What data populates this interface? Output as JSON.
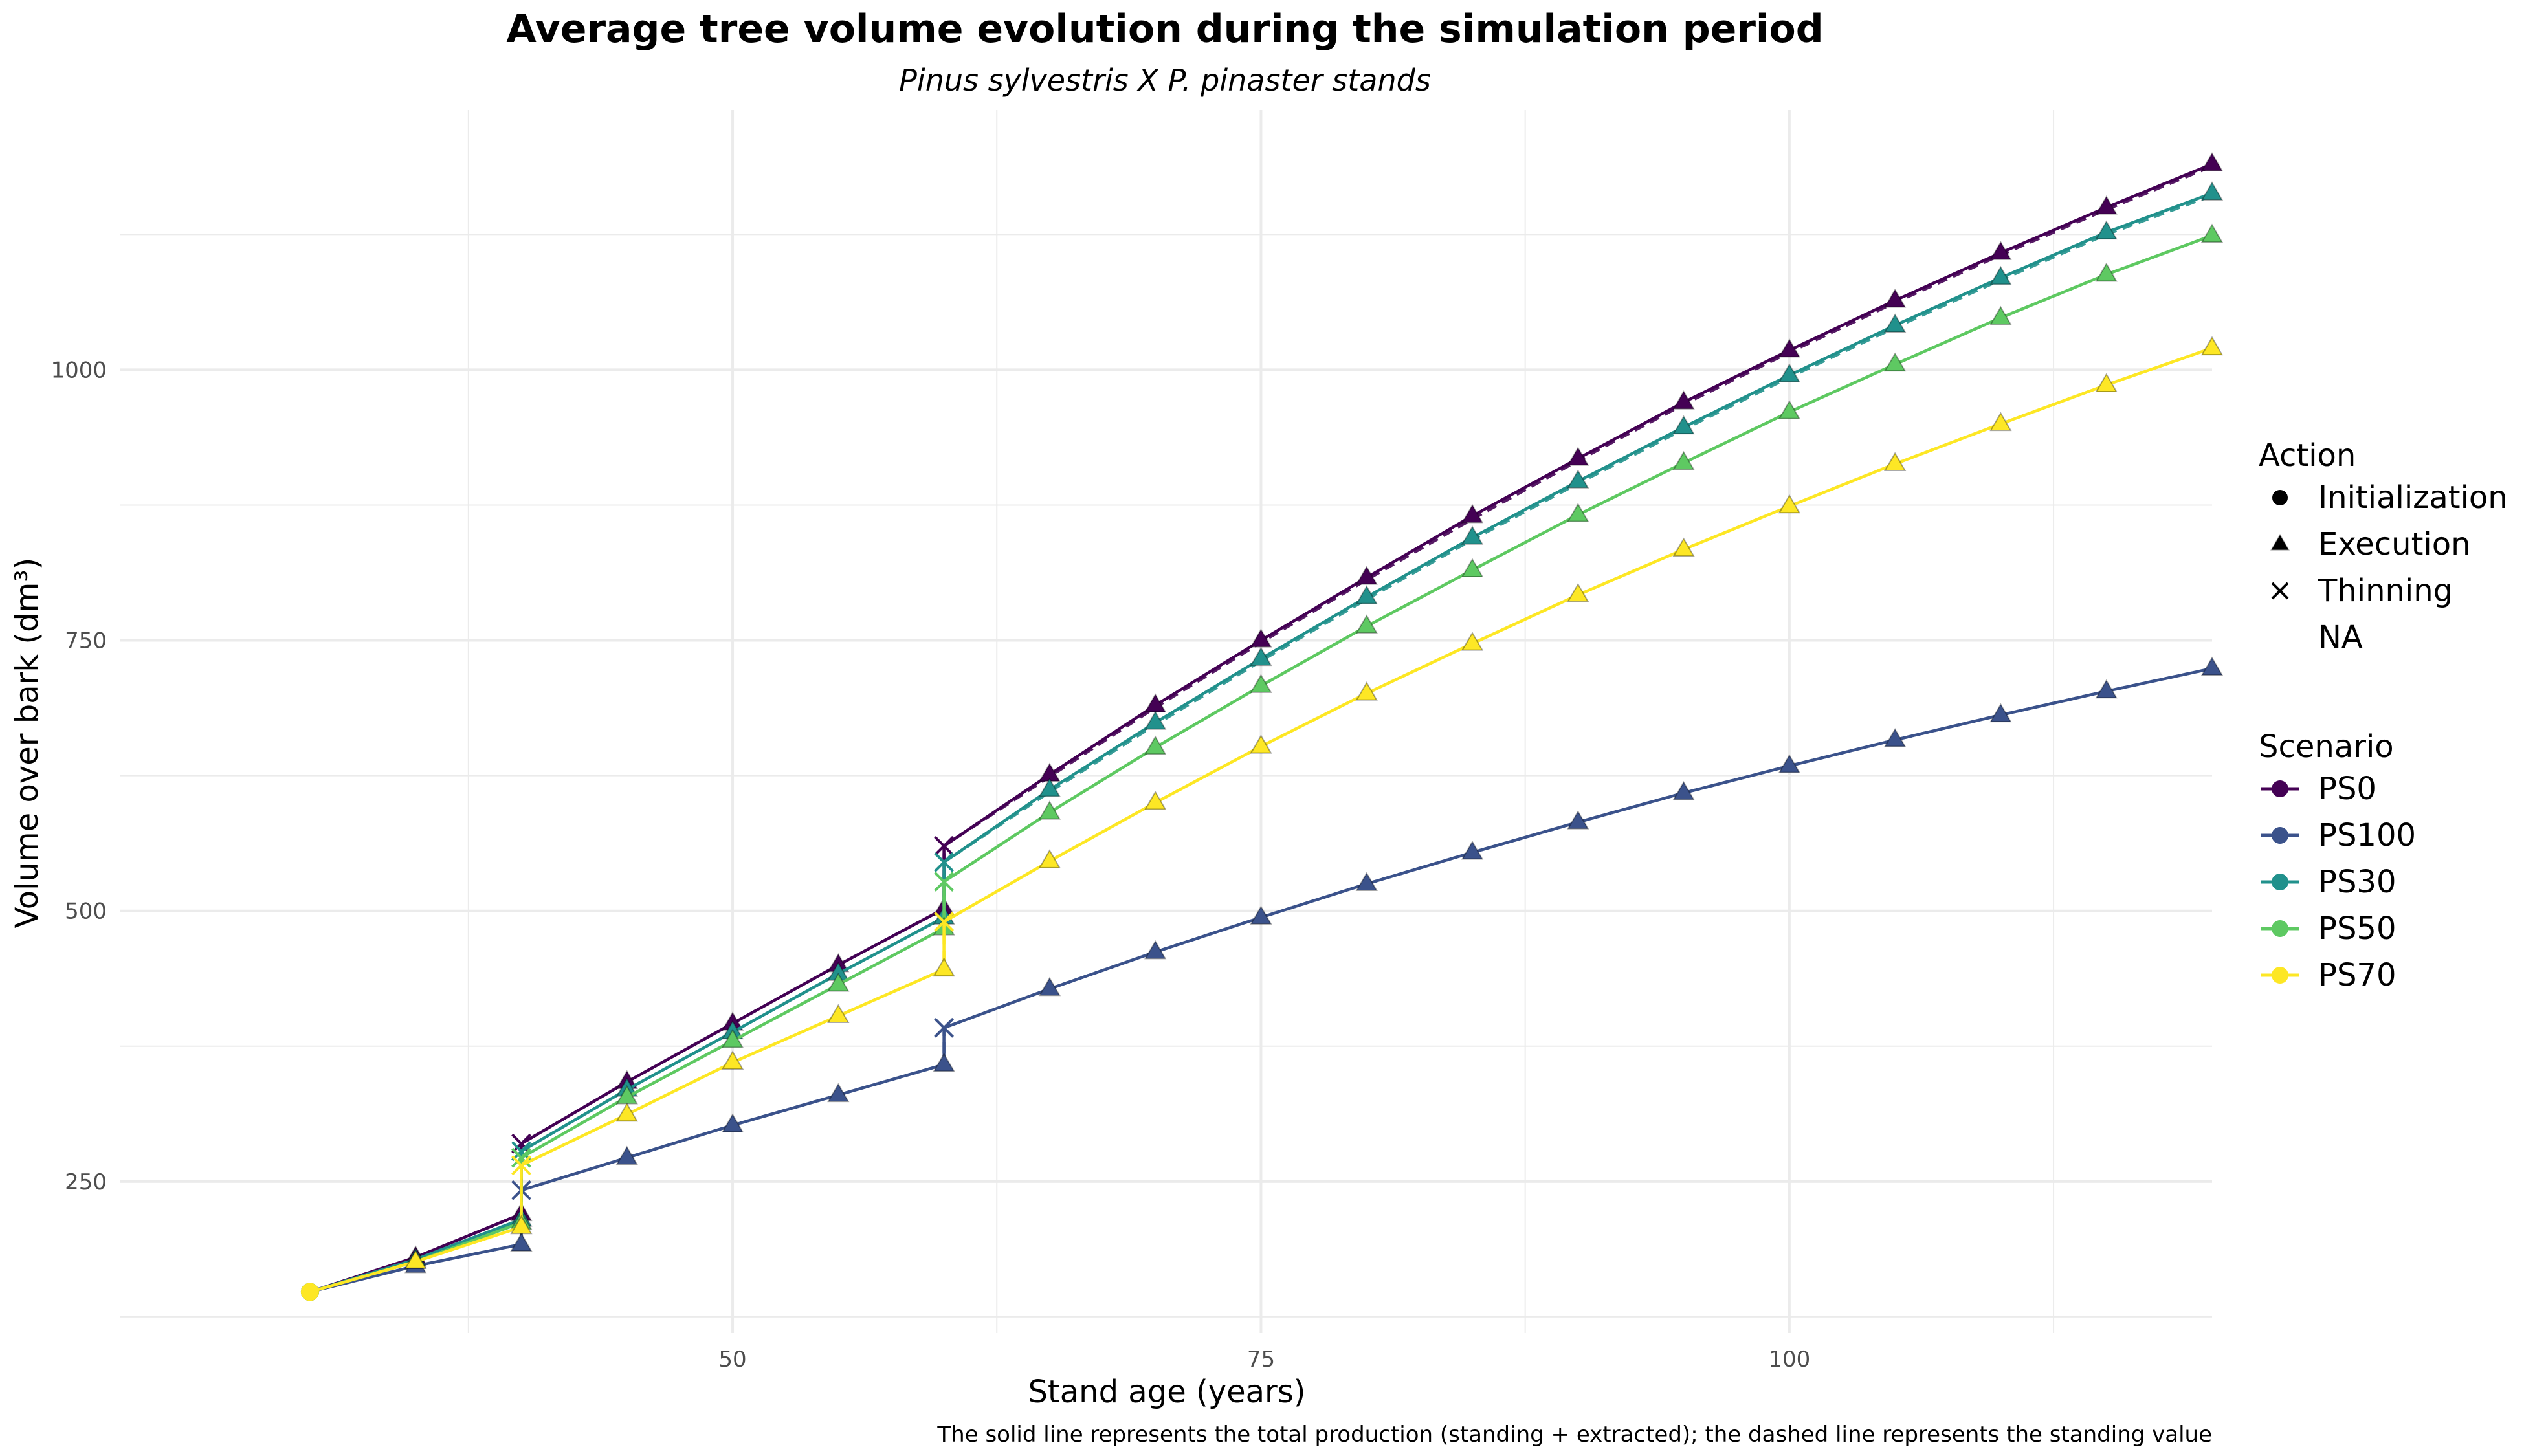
{
  "chart_data": {
    "type": "line",
    "title": "Average tree volume evolution during the simulation period",
    "subtitle": "Pinus sylvestris X P. pinaster stands",
    "xlabel": "Stand age (years)",
    "ylabel": "Volume over bark (dm³)",
    "caption": "The solid line represents the total production (standing + extracted); the dashed line represents the standing value",
    "xlim": [
      21,
      120
    ],
    "ylim": [
      110,
      1240
    ],
    "x_ticks": [
      50,
      75,
      100
    ],
    "x_tick_labels": [
      "50",
      "75",
      "100"
    ],
    "y_ticks": [
      250,
      500,
      750,
      1000
    ],
    "y_tick_labels": [
      "250",
      "500",
      "750",
      "1000"
    ],
    "grid": true,
    "legend_position": "right",
    "legend": {
      "action_title": "Action",
      "action_items": [
        {
          "label": "Initialization",
          "shape": "circle"
        },
        {
          "label": "Execution",
          "shape": "triangle"
        },
        {
          "label": "Thinning",
          "shape": "cross"
        },
        {
          "label": "NA",
          "shape": "none"
        }
      ],
      "scenario_title": "Scenario"
    },
    "series": [
      {
        "name": "PS0",
        "color": "#440154",
        "x": [
          30,
          35,
          40,
          40,
          45,
          50,
          55,
          60,
          60,
          65,
          70,
          75,
          80,
          85,
          90,
          95,
          100,
          105,
          110,
          115,
          120
        ],
        "total": [
          148,
          180,
          220,
          285,
          342,
          396,
          450,
          502,
          560,
          626,
          690,
          750,
          808,
          865,
          918,
          970,
          1018,
          1064,
          1108,
          1150,
          1190
        ],
        "standing": [
          148,
          180,
          220,
          285,
          342,
          396,
          450,
          502,
          560,
          624,
          688,
          748,
          806,
          862,
          916,
          968,
          1016,
          1062,
          1106,
          1148,
          1188
        ],
        "action": [
          "Initialization",
          "Execution",
          "Execution",
          "Thinning",
          "Execution",
          "Execution",
          "Execution",
          "Execution",
          "Thinning",
          "Execution",
          "Execution",
          "Execution",
          "Execution",
          "Execution",
          "Execution",
          "Execution",
          "Execution",
          "Execution",
          "Execution",
          "Execution",
          "Execution"
        ]
      },
      {
        "name": "PS100",
        "color": "#3B528B",
        "x": [
          30,
          35,
          40,
          40,
          45,
          50,
          55,
          60,
          60,
          65,
          70,
          75,
          80,
          85,
          90,
          95,
          100,
          105,
          110,
          115,
          120
        ],
        "total": [
          148,
          172,
          192,
          242,
          272,
          302,
          330,
          358,
          392,
          428,
          462,
          494,
          525,
          554,
          582,
          609,
          634,
          658,
          681,
          703,
          724
        ],
        "standing": [
          148,
          172,
          192,
          242,
          272,
          302,
          330,
          358,
          392,
          428,
          462,
          494,
          525,
          554,
          582,
          609,
          634,
          658,
          681,
          703,
          724
        ],
        "action": [
          "Initialization",
          "Execution",
          "Execution",
          "Thinning",
          "Execution",
          "Execution",
          "Execution",
          "Execution",
          "Thinning",
          "Execution",
          "Execution",
          "Execution",
          "Execution",
          "Execution",
          "Execution",
          "Execution",
          "Execution",
          "Execution",
          "Execution",
          "Execution",
          "Execution"
        ]
      },
      {
        "name": "PS30",
        "color": "#21918C",
        "x": [
          30,
          35,
          40,
          40,
          45,
          50,
          55,
          60,
          60,
          65,
          70,
          75,
          80,
          85,
          90,
          95,
          100,
          105,
          110,
          115,
          120
        ],
        "total": [
          148,
          178,
          215,
          278,
          335,
          388,
          442,
          494,
          545,
          612,
          674,
          733,
          790,
          845,
          897,
          947,
          995,
          1041,
          1085,
          1127,
          1163
        ],
        "standing": [
          148,
          178,
          215,
          278,
          335,
          388,
          442,
          494,
          545,
          610,
          672,
          731,
          788,
          843,
          895,
          945,
          993,
          1039,
          1083,
          1125,
          1161
        ],
        "action": [
          "Initialization",
          "Execution",
          "Execution",
          "Thinning",
          "Execution",
          "Execution",
          "Execution",
          "Execution",
          "Thinning",
          "Execution",
          "Execution",
          "Execution",
          "Execution",
          "Execution",
          "Execution",
          "Execution",
          "Execution",
          "Execution",
          "Execution",
          "Execution",
          "Execution"
        ]
      },
      {
        "name": "PS50",
        "color": "#5EC962",
        "x": [
          30,
          35,
          40,
          40,
          45,
          50,
          55,
          60,
          60,
          65,
          70,
          75,
          80,
          85,
          90,
          95,
          100,
          105,
          110,
          115,
          120
        ],
        "total": [
          148,
          176,
          212,
          272,
          328,
          380,
          432,
          484,
          527,
          591,
          651,
          708,
          763,
          815,
          866,
          914,
          961,
          1005,
          1048,
          1088,
          1124
        ],
        "standing": [
          148,
          176,
          212,
          272,
          328,
          380,
          432,
          484,
          527,
          591,
          651,
          708,
          763,
          815,
          866,
          914,
          961,
          1005,
          1048,
          1088,
          1124
        ],
        "action": [
          "Initialization",
          "Execution",
          "Execution",
          "Thinning",
          "Execution",
          "Execution",
          "Execution",
          "Execution",
          "Thinning",
          "Execution",
          "Execution",
          "Execution",
          "Execution",
          "Execution",
          "Execution",
          "Execution",
          "Execution",
          "Execution",
          "Execution",
          "Execution",
          "Execution"
        ]
      },
      {
        "name": "PS70",
        "color": "#FDE725",
        "x": [
          30,
          35,
          40,
          40,
          45,
          50,
          55,
          60,
          60,
          65,
          70,
          75,
          80,
          85,
          90,
          95,
          100,
          105,
          110,
          115,
          120
        ],
        "total": [
          148,
          176,
          208,
          265,
          312,
          360,
          403,
          446,
          490,
          546,
          600,
          652,
          701,
          747,
          792,
          834,
          874,
          913,
          950,
          986,
          1020
        ],
        "standing": [
          148,
          176,
          208,
          265,
          312,
          360,
          403,
          446,
          490,
          546,
          600,
          652,
          701,
          747,
          792,
          834,
          874,
          913,
          950,
          986,
          1020
        ],
        "action": [
          "Initialization",
          "Execution",
          "Execution",
          "Thinning",
          "Execution",
          "Execution",
          "Execution",
          "Execution",
          "Thinning",
          "Execution",
          "Execution",
          "Execution",
          "Execution",
          "Execution",
          "Execution",
          "Execution",
          "Execution",
          "Execution",
          "Execution",
          "Execution",
          "Execution"
        ]
      }
    ]
  }
}
